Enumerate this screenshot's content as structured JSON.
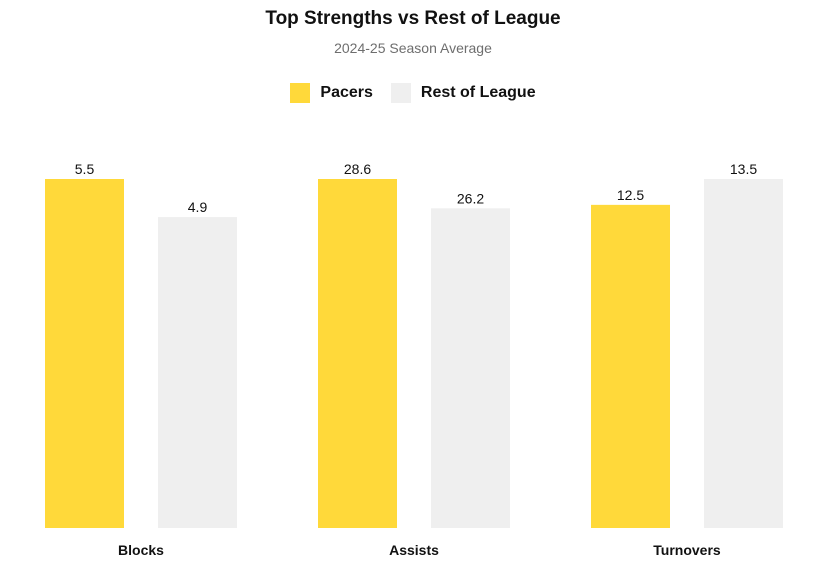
{
  "chart_data": {
    "type": "bar",
    "title": "Top Strengths vs Rest of League",
    "subtitle": "2024-25 Season Average",
    "categories": [
      "Blocks",
      "Assists",
      "Turnovers"
    ],
    "series": [
      {
        "name": "Pacers",
        "color": "#FFD93A",
        "values": [
          5.5,
          28.6,
          12.5
        ]
      },
      {
        "name": "Rest of League",
        "color": "#EFEFEF",
        "values": [
          4.9,
          26.2,
          13.5
        ]
      }
    ],
    "normalization": "per-category relative to the larger value",
    "grid": false,
    "legend_position": "top-center"
  }
}
